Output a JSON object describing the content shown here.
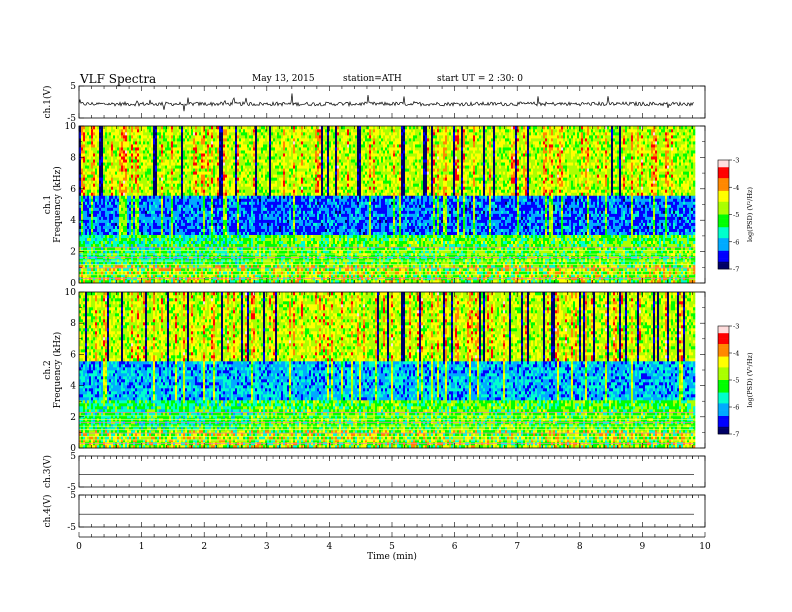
{
  "header": {
    "title": "VLF  Spectra",
    "date": "May 13, 2015",
    "station": "station=ATH",
    "start": "start  UT  =   2  :30: 0"
  },
  "chart_data": [
    {
      "type": "line",
      "panel": "ch1-waveform",
      "ylabel": "ch.1(V)",
      "ylim": [
        -5,
        5
      ],
      "yticks": [
        "5",
        "-5"
      ],
      "baseline": -0.6,
      "color": "#000000"
    },
    {
      "type": "heatmap",
      "panel": "ch1-spectrogram",
      "ylabel": "ch.1\nFrequency (kHz)",
      "ylim": [
        0,
        10
      ],
      "yticks": [
        "0",
        "2",
        "4",
        "6",
        "8",
        "10"
      ],
      "colorbar": {
        "label": "log(PSD) (V²/Hz)",
        "range": [
          -7,
          -3
        ],
        "ticks": [
          "-3",
          "-4",
          "-5",
          "-6",
          "-7"
        ]
      }
    },
    {
      "type": "heatmap",
      "panel": "ch2-spectrogram",
      "ylabel": "ch.2\nFrequency (kHz)",
      "ylim": [
        0,
        10
      ],
      "yticks": [
        "0",
        "2",
        "4",
        "6",
        "8",
        "10"
      ],
      "colorbar": {
        "label": "log(PSD) (V²/Hz)",
        "range": [
          -7,
          -3
        ],
        "ticks": [
          "-3",
          "-4",
          "-5",
          "-6",
          "-7"
        ]
      }
    },
    {
      "type": "line",
      "panel": "ch3-waveform",
      "ylabel": "ch.3(V)",
      "ylim": [
        -5,
        5
      ],
      "yticks": [
        "5",
        "-5"
      ],
      "baseline": -1.0
    },
    {
      "type": "line",
      "panel": "ch4-waveform",
      "ylabel": "ch.4(V)",
      "ylim": [
        -5,
        5
      ],
      "yticks": [
        "5",
        "-5"
      ],
      "baseline": -1.0
    }
  ],
  "xaxis": {
    "label": "Time  (min)",
    "range": [
      0,
      10
    ],
    "ticks": [
      "0",
      "1",
      "2",
      "3",
      "4",
      "5",
      "6",
      "7",
      "8",
      "9",
      "10"
    ],
    "data_end": 9.83
  },
  "colors": {
    "scale": [
      "#000066",
      "#0000ff",
      "#00aaff",
      "#00ffcc",
      "#00ff00",
      "#aaff00",
      "#ffff00",
      "#ff8800",
      "#ff0000",
      "#ffdddd"
    ]
  }
}
